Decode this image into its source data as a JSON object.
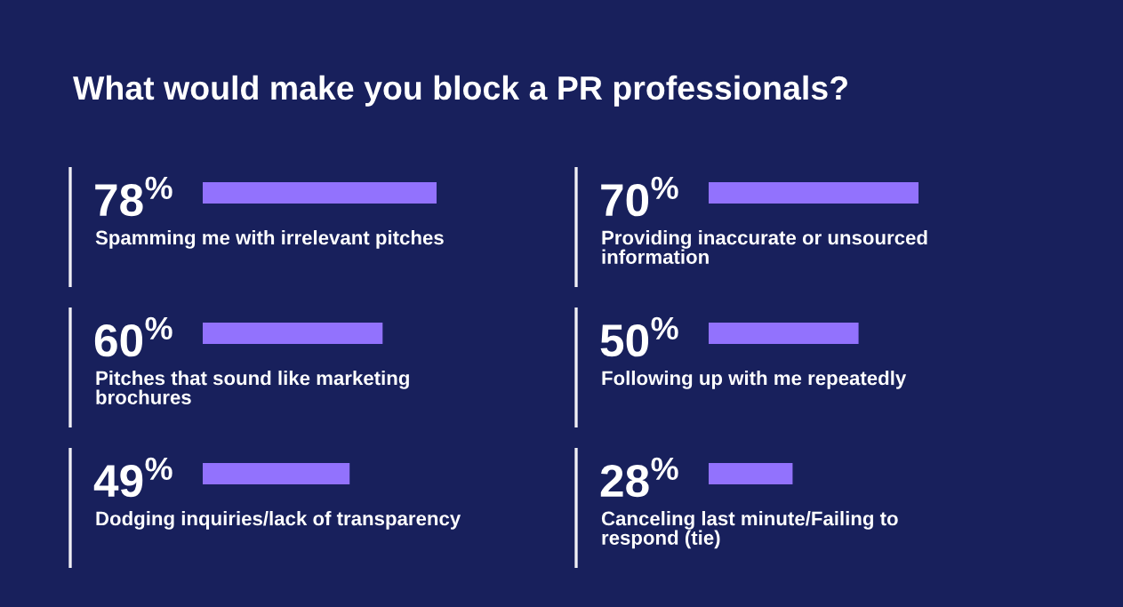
{
  "chart_data": [
    {
      "type": "bar",
      "orientation": "horizontal",
      "title": "What would make you block a PR professionals?",
      "categories": [
        "Spamming me with irrelevant pitches",
        "Pitches that sound like marketing\nbrochures",
        "Dodging inquiries/lack of transparency"
      ],
      "values": [
        78,
        60,
        49
      ],
      "value_labels": [
        "78$^{%}$",
        "60$^{%}$",
        "49$^{%}$"
      ],
      "color": "#9272fd"
    },
    {
      "type": "bar",
      "orientation": "horizontal",
      "categories": [
        "Providing inaccurate or unsourced\ninformation",
        "Following up with me repeatedly",
        "Canceling last minute/Failing to\nrespond (tie)"
      ],
      "values": [
        70,
        50,
        28
      ],
      "value_labels": [
        "70$^{%}$",
        "50$^{%}$",
        "28$^{%}$"
      ],
      "color": "#9272fd"
    }
  ]
}
